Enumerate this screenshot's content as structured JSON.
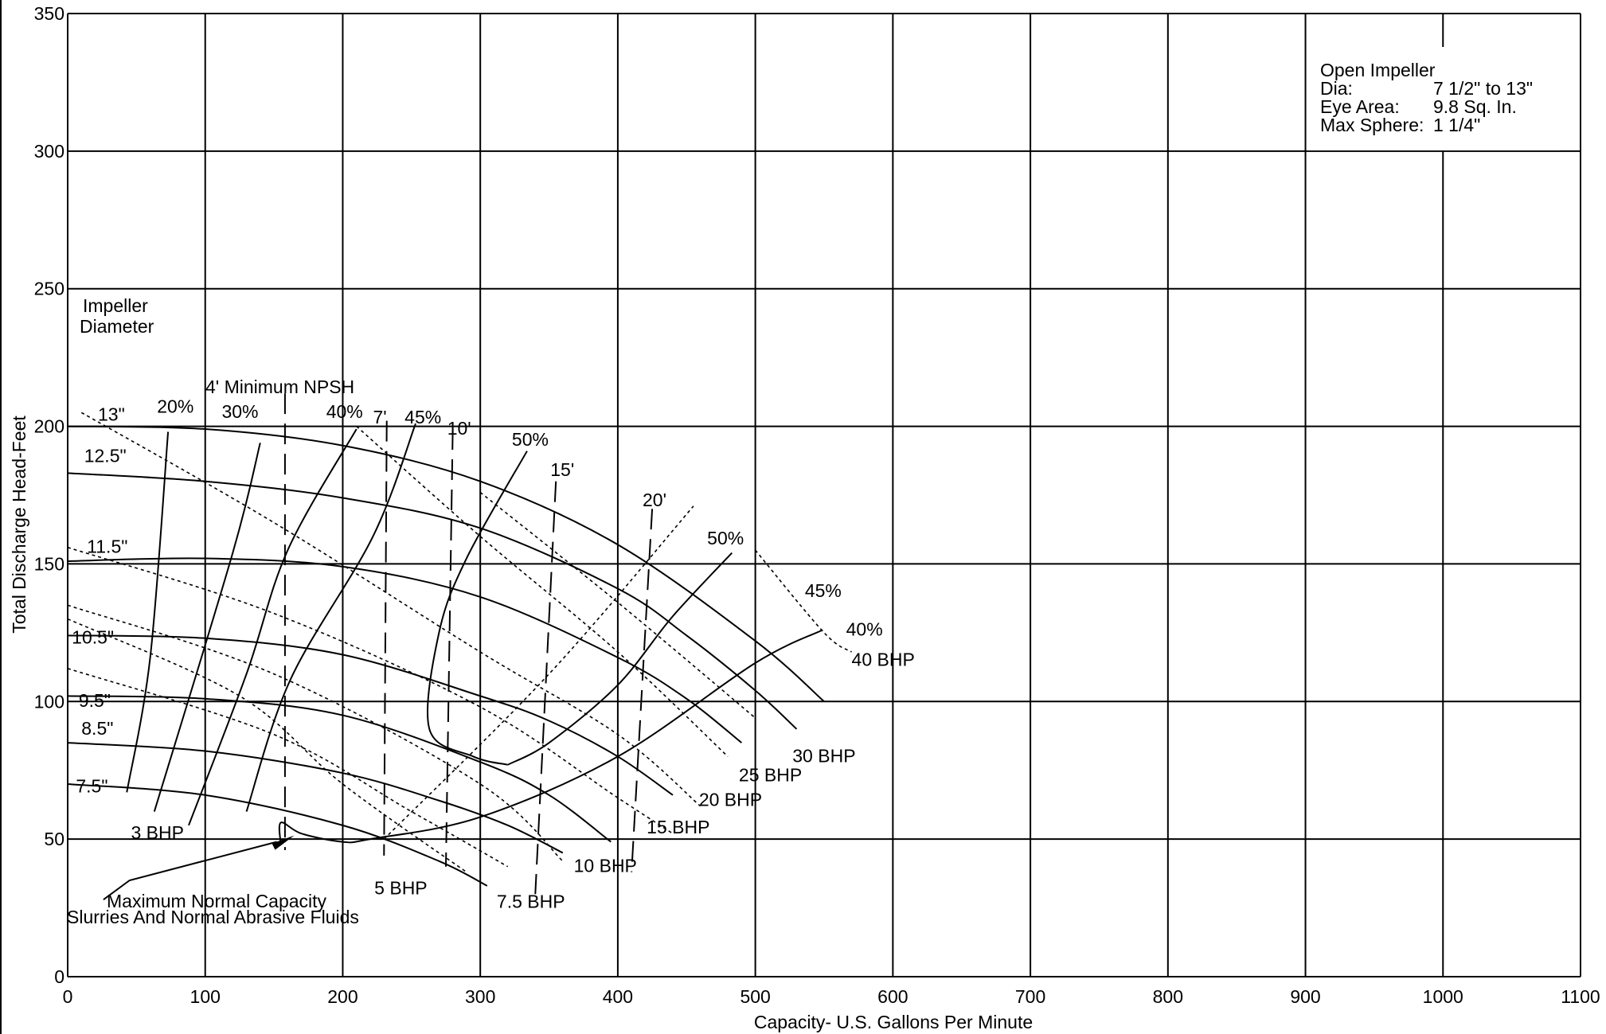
{
  "chart_data": {
    "type": "line",
    "title": "",
    "xlabel": "Capacity- U.S. Gallons Per Minute",
    "ylabel": "Total Discharge Head-Feet",
    "xlim": [
      0,
      1100
    ],
    "ylim": [
      0,
      350
    ],
    "grid": true,
    "x_ticks": [
      "0",
      "100",
      "200",
      "300",
      "400",
      "500",
      "600",
      "700",
      "800",
      "900",
      "1000",
      "1100"
    ],
    "y_ticks": [
      "0",
      "50",
      "100",
      "150",
      "200",
      "250",
      "300",
      "350"
    ],
    "info_box": {
      "title": "Open Impeller",
      "rows": [
        {
          "label": "Dia:",
          "value": "7 1/2\" to 13\""
        },
        {
          "label": "Eye Area:",
          "value": "9.8 Sq. In."
        },
        {
          "label": "Max Sphere:",
          "value": "1 1/4\""
        }
      ]
    },
    "annotations": {
      "impeller_line1": "Impeller",
      "impeller_line2": "Diameter",
      "npsh_title": "4' Minimum NPSH",
      "max_capacity_line1": "Maximum Normal Capacity",
      "max_capacity_line2": "Slurries And Normal Abrasive Fluids"
    },
    "head_curves": [
      {
        "label": "13\"",
        "points": [
          [
            0,
            200
          ],
          [
            100,
            199
          ],
          [
            200,
            193
          ],
          [
            300,
            180
          ],
          [
            400,
            157
          ],
          [
            500,
            122
          ],
          [
            550,
            100
          ]
        ]
      },
      {
        "label": "12.5\"",
        "points": [
          [
            0,
            183
          ],
          [
            100,
            180
          ],
          [
            200,
            174
          ],
          [
            300,
            163
          ],
          [
            400,
            141
          ],
          [
            450,
            124
          ],
          [
            500,
            104
          ],
          [
            530,
            90
          ]
        ]
      },
      {
        "label": "11.5\"",
        "points": [
          [
            0,
            151
          ],
          [
            100,
            152
          ],
          [
            200,
            149
          ],
          [
            300,
            138
          ],
          [
            400,
            116
          ],
          [
            450,
            101
          ],
          [
            490,
            85
          ]
        ]
      },
      {
        "label": "10.5\"",
        "points": [
          [
            0,
            124
          ],
          [
            100,
            123
          ],
          [
            200,
            117
          ],
          [
            300,
            102
          ],
          [
            350,
            93
          ],
          [
            400,
            80
          ],
          [
            440,
            66
          ]
        ]
      },
      {
        "label": "9.5\"",
        "points": [
          [
            0,
            102
          ],
          [
            100,
            101
          ],
          [
            200,
            95
          ],
          [
            300,
            78
          ],
          [
            350,
            66
          ],
          [
            395,
            49
          ]
        ]
      },
      {
        "label": "8.5\"",
        "points": [
          [
            0,
            85
          ],
          [
            100,
            82
          ],
          [
            200,
            74
          ],
          [
            270,
            64
          ],
          [
            320,
            55
          ],
          [
            360,
            45
          ]
        ]
      },
      {
        "label": "7.5\"",
        "points": [
          [
            0,
            70
          ],
          [
            100,
            66
          ],
          [
            200,
            55
          ],
          [
            270,
            42
          ],
          [
            305,
            33
          ]
        ]
      }
    ],
    "efficiency_curves": [
      {
        "label": "20%",
        "points": [
          [
            43,
            67
          ],
          [
            60,
            116
          ],
          [
            73,
            198
          ]
        ]
      },
      {
        "label": "20%",
        "points": [
          [
            63,
            60
          ],
          [
            120,
            154
          ],
          [
            140,
            194
          ]
        ]
      },
      {
        "label": "30%",
        "points": [
          [
            88,
            55
          ],
          [
            130,
            110
          ],
          [
            160,
            155
          ],
          [
            210,
            199
          ]
        ]
      },
      {
        "label": "40%",
        "points": [
          [
            130,
            60
          ],
          [
            162,
            108
          ],
          [
            222,
            160
          ],
          [
            253,
            201
          ]
        ]
      },
      {
        "label": "45%",
        "points": [
          [
            155,
            48
          ],
          [
            155,
            56
          ],
          [
            170,
            52
          ],
          [
            200,
            49
          ],
          [
            220,
            50
          ],
          [
            300,
            58
          ],
          [
            400,
            80
          ],
          [
            500,
            114
          ],
          [
            549,
            126
          ]
        ]
      },
      {
        "label": "50%",
        "points": [
          [
            320,
            77
          ],
          [
            295,
            80
          ],
          [
            263,
            90
          ],
          [
            270,
            125
          ],
          [
            290,
            152
          ],
          [
            334,
            191
          ]
        ]
      },
      {
        "label": "50%",
        "points": [
          [
            320,
            77
          ],
          [
            350,
            85
          ],
          [
            400,
            106
          ],
          [
            440,
            131
          ],
          [
            483,
            154
          ]
        ]
      }
    ],
    "bhp_lines": [
      {
        "label": "3 BHP"
      },
      {
        "label": "5 BHP"
      },
      {
        "label": "7.5 BHP"
      },
      {
        "label": "10 BHP"
      },
      {
        "label": "15 BHP"
      },
      {
        "label": "20 BHP"
      },
      {
        "label": "25 BHP"
      },
      {
        "label": "30 BHP"
      },
      {
        "label": "40 BHP"
      }
    ],
    "npsh_lines": [
      {
        "label": "4'",
        "points": [
          [
            158,
            212
          ],
          [
            158,
            46
          ]
        ]
      },
      {
        "label": "7'",
        "points": [
          [
            232,
            202
          ],
          [
            230,
            44
          ]
        ]
      },
      {
        "label": "10'",
        "points": [
          [
            280,
            199
          ],
          [
            275,
            40
          ]
        ]
      },
      {
        "label": "15'",
        "points": [
          [
            355,
            180
          ],
          [
            340,
            30
          ]
        ]
      },
      {
        "label": "20'",
        "points": [
          [
            425,
            170
          ],
          [
            410,
            38
          ]
        ]
      }
    ]
  }
}
